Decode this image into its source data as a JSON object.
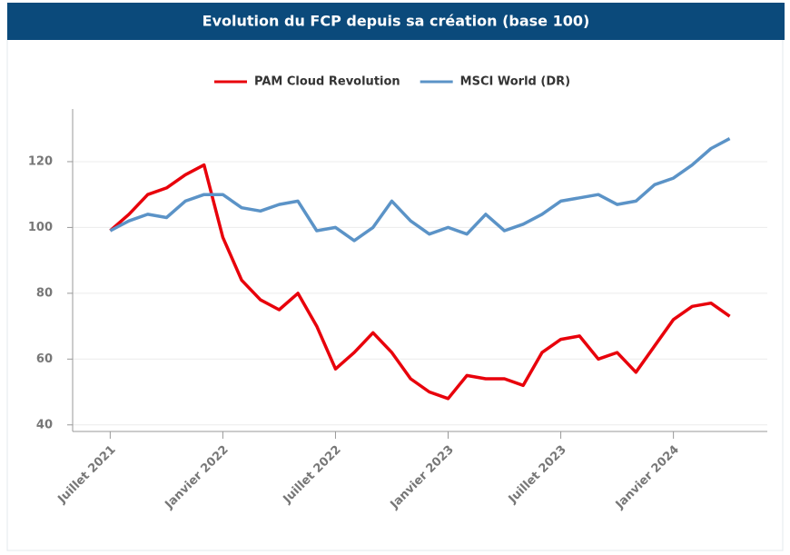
{
  "chart_data": {
    "type": "line",
    "title": "Evolution du FCP depuis sa création (base 100)",
    "x": [
      "2021-07",
      "2021-08",
      "2021-09",
      "2021-10",
      "2021-11",
      "2021-12",
      "2022-01",
      "2022-02",
      "2022-03",
      "2022-04",
      "2022-05",
      "2022-06",
      "2022-07",
      "2022-08",
      "2022-09",
      "2022-10",
      "2022-11",
      "2022-12",
      "2023-01",
      "2023-02",
      "2023-03",
      "2023-04",
      "2023-05",
      "2023-06",
      "2023-07",
      "2023-08",
      "2023-09",
      "2023-10",
      "2023-11",
      "2023-12",
      "2024-01",
      "2024-02",
      "2024-03",
      "2024-04"
    ],
    "series": [
      {
        "name": "PAM Cloud Revolution",
        "color": "#e8000b",
        "values": [
          99,
          104,
          110,
          112,
          116,
          119,
          97,
          84,
          78,
          75,
          80,
          70,
          57,
          62,
          68,
          62,
          54,
          50,
          48,
          55,
          54,
          54,
          52,
          62,
          66,
          67,
          60,
          62,
          56,
          64,
          72,
          76,
          77,
          73
        ]
      },
      {
        "name": "MSCI World (DR)",
        "color": "#5b93c7",
        "values": [
          99,
          102,
          104,
          103,
          108,
          110,
          110,
          106,
          105,
          107,
          108,
          99,
          100,
          96,
          100,
          108,
          102,
          98,
          100,
          98,
          104,
          99,
          101,
          104,
          108,
          109,
          110,
          107,
          108,
          113,
          115,
          119,
          124,
          127
        ]
      }
    ],
    "xlim": [
      "2021-05",
      "2024-06"
    ],
    "xticks": [
      {
        "value": "2021-07",
        "label": "Juillet 2021"
      },
      {
        "value": "2022-01",
        "label": "Janvier 2022"
      },
      {
        "value": "2022-07",
        "label": "Juillet 2022"
      },
      {
        "value": "2023-01",
        "label": "Janvier 2023"
      },
      {
        "value": "2023-07",
        "label": "Juillet 2023"
      },
      {
        "value": "2024-01",
        "label": "Janvier 2024"
      }
    ],
    "ylim": [
      38,
      136
    ],
    "yticks": [
      40,
      60,
      80,
      100,
      120
    ],
    "grid": true,
    "legend": "top"
  }
}
